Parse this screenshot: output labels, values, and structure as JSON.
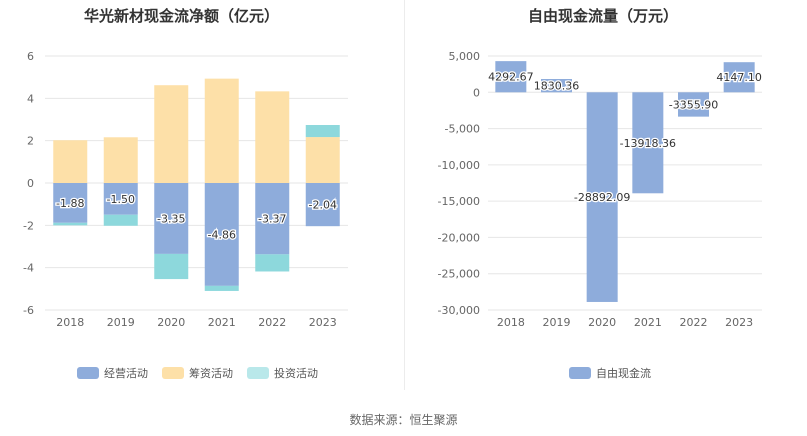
{
  "left_title": "华光新材现金流净额（亿元）",
  "right_title": "自由现金流量（万元）",
  "source": "数据来源：恒生聚源",
  "colors": {
    "operating": "#8eacdb",
    "financing": "#fde0a8",
    "investing": "#8dd8dc",
    "fcf": "#8eacdb"
  },
  "chart_data": [
    {
      "type": "bar",
      "stacked": true,
      "title": "华光新材现金流净额（亿元）",
      "categories": [
        "2018",
        "2019",
        "2020",
        "2021",
        "2022",
        "2023"
      ],
      "ylim": [
        -6,
        6
      ],
      "yticks": [
        6,
        4,
        2,
        0,
        -2,
        -4,
        -6
      ],
      "grid": true,
      "legend_position": "bottom",
      "series": [
        {
          "name": "经营活动",
          "values": [
            -1.88,
            -1.5,
            -3.35,
            -4.86,
            -3.37,
            -2.04
          ],
          "labels": [
            "-1.88",
            "-1.50",
            "-3.35",
            "-4.86",
            "-3.37",
            "-2.04"
          ]
        },
        {
          "name": "筹资活动",
          "values": [
            2.02,
            2.16,
            4.62,
            4.93,
            4.33,
            2.17
          ]
        },
        {
          "name": "投资活动",
          "values": [
            -0.12,
            -0.52,
            -1.19,
            -0.24,
            -0.81,
            0.57
          ]
        }
      ]
    },
    {
      "type": "bar",
      "title": "自由现金流量（万元）",
      "categories": [
        "2018",
        "2019",
        "2020",
        "2021",
        "2022",
        "2023"
      ],
      "ylim": [
        -30000,
        5000
      ],
      "yticks": [
        5000,
        0,
        -5000,
        -10000,
        -15000,
        -20000,
        -25000,
        -30000
      ],
      "ytick_labels": [
        "5,000",
        "0",
        "-5,000",
        "-10,000",
        "-15,000",
        "-20,000",
        "-25,000",
        "-30,000"
      ],
      "grid": true,
      "legend_position": "bottom",
      "series": [
        {
          "name": "自由现金流",
          "values": [
            4292.67,
            1830.36,
            -28892.09,
            -13918.36,
            -3355.9,
            4147.1
          ],
          "labels": [
            "4292.67",
            "1830.36",
            "-28892.09",
            "-13918.36",
            "-3355.90",
            "4147.10"
          ]
        }
      ]
    }
  ]
}
